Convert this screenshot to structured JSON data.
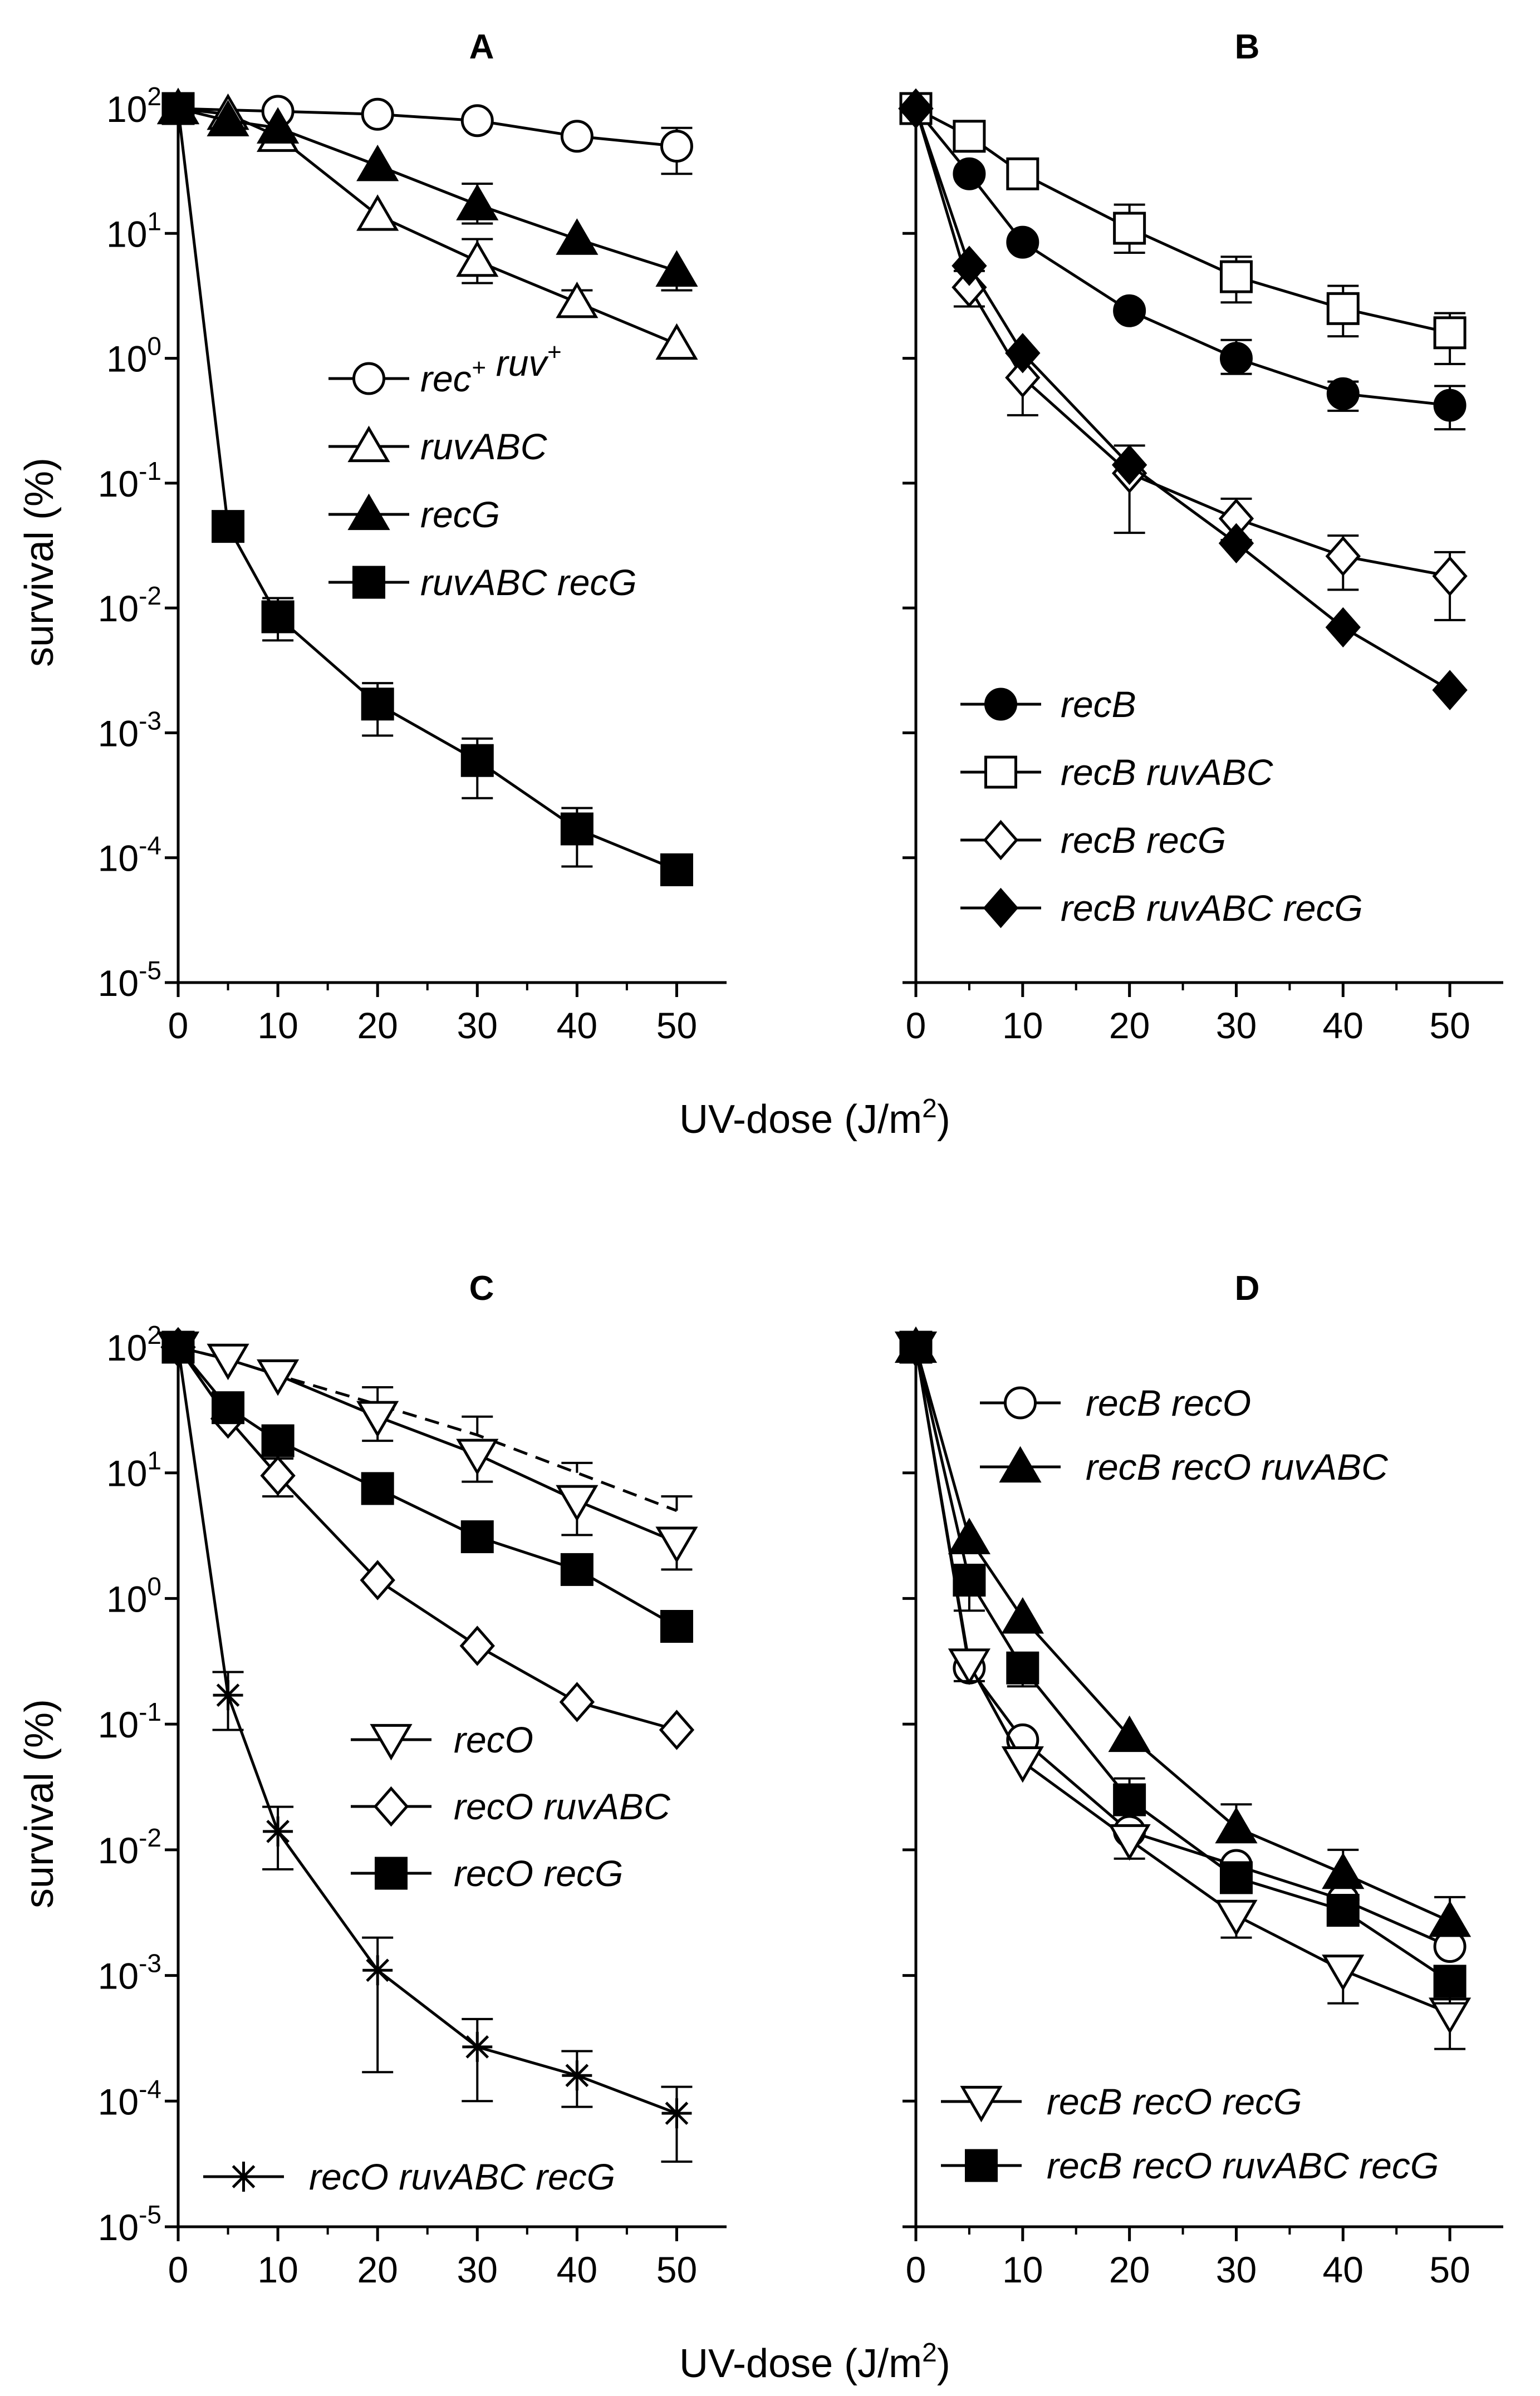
{
  "figure": {
    "shared_xlabel_top": "UV-dose (J/m",
    "shared_xlabel_bottom": "UV-dose (J/m",
    "xlabel_sup": "2",
    "ylabel_top": "survival (%)",
    "ylabel_bottom": "survival (%)"
  },
  "chart_data": [
    {
      "type": "line",
      "panel": "A",
      "title": "A",
      "xlabel": "UV-dose (J/m2)",
      "ylabel": "survival (%)",
      "yscale": "log",
      "xlim": [
        0,
        55
      ],
      "ylim": [
        1e-05,
        100
      ],
      "xticks": [
        0,
        10,
        20,
        30,
        40,
        50
      ],
      "yticks": [
        {
          "value": 100,
          "base": "10",
          "exp": "2"
        },
        {
          "value": 10,
          "base": "10",
          "exp": "1"
        },
        {
          "value": 1,
          "base": "10",
          "exp": "0"
        },
        {
          "value": 0.1,
          "base": "10",
          "exp": "-1"
        },
        {
          "value": 0.01,
          "base": "10",
          "exp": "-2"
        },
        {
          "value": 0.001,
          "base": "10",
          "exp": "-3"
        },
        {
          "value": 0.0001,
          "base": "10",
          "exp": "-4"
        },
        {
          "value": 1e-05,
          "base": "10",
          "exp": "-5"
        }
      ],
      "legend_position": "center-right",
      "series": [
        {
          "name": "rec",
          "name_parts": [
            {
              "t": "rec"
            },
            {
              "t": "+",
              "sup": true
            },
            {
              "t": " ruv"
            },
            {
              "t": "+",
              "sup": true
            }
          ],
          "marker": "circle",
          "fill": "open",
          "x": [
            0,
            10,
            20,
            30,
            40,
            50
          ],
          "y": [
            100,
            95,
            90,
            80,
            60,
            50
          ],
          "err_up": [
            null,
            null,
            null,
            null,
            null,
            70
          ],
          "err_down": [
            null,
            null,
            null,
            null,
            null,
            30
          ]
        },
        {
          "name": "ruvABC",
          "marker": "triangle-up",
          "fill": "open",
          "x": [
            0,
            5,
            10,
            20,
            30,
            40,
            50
          ],
          "y": [
            100,
            90,
            60,
            14,
            6,
            2.8,
            1.3
          ],
          "err_up": [
            null,
            null,
            null,
            null,
            9,
            3.5,
            null
          ],
          "err_down": [
            null,
            null,
            null,
            null,
            4,
            2.2,
            null
          ]
        },
        {
          "name": "recG",
          "marker": "triangle-up",
          "fill": "filled",
          "x": [
            0,
            5,
            10,
            20,
            30,
            40,
            50
          ],
          "y": [
            100,
            80,
            70,
            35,
            17,
            9,
            5
          ],
          "err_up": [
            null,
            null,
            null,
            null,
            25,
            null,
            null
          ],
          "err_down": [
            null,
            null,
            null,
            null,
            12,
            null,
            3.5
          ]
        },
        {
          "name": "ruvABC recG",
          "marker": "square",
          "fill": "filled",
          "x": [
            0,
            5,
            10,
            20,
            30,
            40,
            50
          ],
          "y": [
            100,
            0.045,
            0.0085,
            0.0017,
            0.0006,
            0.00017,
            8e-05
          ],
          "err_up": [
            null,
            null,
            0.012,
            0.0025,
            0.0009,
            0.00025,
            null
          ],
          "err_down": [
            null,
            null,
            0.0055,
            0.00095,
            0.0003,
            8.5e-05,
            null
          ]
        }
      ]
    },
    {
      "type": "line",
      "panel": "B",
      "title": "B",
      "xlabel": "UV-dose (J/m2)",
      "ylabel": "",
      "yscale": "log",
      "xlim": [
        0,
        55
      ],
      "ylim": [
        1e-05,
        100
      ],
      "xticks": [
        0,
        10,
        20,
        30,
        40,
        50
      ],
      "legend_position": "bottom-right",
      "series": [
        {
          "name": "recB",
          "marker": "circle",
          "fill": "filled",
          "x": [
            0,
            5,
            10,
            20,
            30,
            40,
            50
          ],
          "y": [
            100,
            30,
            8.5,
            2.4,
            1.0,
            0.52,
            0.42
          ],
          "err_up": [
            null,
            null,
            null,
            null,
            1.4,
            0.65,
            0.6
          ],
          "err_down": [
            null,
            null,
            null,
            null,
            0.75,
            0.38,
            0.27
          ]
        },
        {
          "name": "recB ruvABC",
          "marker": "square",
          "fill": "open",
          "x": [
            0,
            5,
            10,
            20,
            30,
            40,
            50
          ],
          "y": [
            100,
            60,
            30,
            11,
            4.5,
            2.5,
            1.6
          ],
          "err_up": [
            null,
            null,
            null,
            17,
            6.5,
            3.8,
            2.3
          ],
          "err_down": [
            null,
            null,
            null,
            7,
            2.8,
            1.5,
            0.9
          ]
        },
        {
          "name": "recB recG",
          "marker": "diamond",
          "fill": "open",
          "x": [
            0,
            5,
            10,
            20,
            30,
            40,
            50
          ],
          "y": [
            100,
            3.7,
            0.7,
            0.12,
            0.052,
            0.026,
            0.018
          ],
          "err_up": [
            null,
            5,
            1.1,
            0.2,
            0.075,
            0.038,
            0.028
          ],
          "err_down": [
            null,
            2.6,
            0.35,
            0.04,
            0.035,
            0.014,
            0.008
          ]
        },
        {
          "name": "recB ruvABC recG",
          "marker": "diamond",
          "fill": "filled",
          "x": [
            0,
            5,
            10,
            20,
            30,
            40,
            50
          ],
          "y": [
            100,
            5.5,
            1.1,
            0.14,
            0.033,
            0.007,
            0.0022
          ],
          "err_up": [
            null,
            null,
            null,
            null,
            null,
            null,
            null
          ],
          "err_down": [
            null,
            null,
            null,
            null,
            null,
            null,
            null
          ]
        }
      ]
    },
    {
      "type": "line",
      "panel": "C",
      "title": "C",
      "xlabel": "UV-dose (J/m2)",
      "ylabel": "survival (%)",
      "yscale": "log",
      "xlim": [
        0,
        55
      ],
      "ylim": [
        1e-05,
        100
      ],
      "xticks": [
        0,
        10,
        20,
        30,
        40,
        50
      ],
      "legend_position": "center-right",
      "series": [
        {
          "name": "recO (dashed)",
          "marker": "none",
          "dashed": true,
          "legend": false,
          "x": [
            0,
            5,
            10,
            20,
            30,
            40,
            50
          ],
          "y": [
            100,
            80,
            60,
            35,
            20,
            10,
            5
          ],
          "err_up": [
            null,
            null,
            null,
            48,
            28,
            12,
            6.5
          ],
          "err_down": [
            null,
            null,
            null,
            null,
            null,
            null,
            null
          ]
        },
        {
          "name": "recO",
          "marker": "triangle-down",
          "fill": "open",
          "x": [
            0,
            5,
            10,
            20,
            30,
            40,
            50
          ],
          "y": [
            100,
            80,
            60,
            28,
            14,
            6,
            2.8
          ],
          "err_up": [
            null,
            null,
            null,
            null,
            null,
            null,
            null
          ],
          "err_down": [
            null,
            null,
            null,
            18,
            8.5,
            3.2,
            1.7
          ]
        },
        {
          "name": "recO ruvABC",
          "marker": "diamond",
          "fill": "open",
          "x": [
            0,
            5,
            10,
            20,
            30,
            40,
            50
          ],
          "y": [
            100,
            27,
            9.5,
            1.4,
            0.42,
            0.15,
            0.09
          ],
          "err_up": [
            null,
            null,
            13,
            null,
            null,
            null,
            null
          ],
          "err_down": [
            null,
            null,
            6.5,
            null,
            null,
            null,
            null
          ]
        },
        {
          "name": "recO recG",
          "marker": "square",
          "fill": "filled",
          "x": [
            0,
            5,
            10,
            20,
            30,
            40,
            50
          ],
          "y": [
            100,
            33,
            18,
            7.5,
            3.1,
            1.7,
            0.6
          ],
          "err_up": [
            null,
            null,
            null,
            null,
            null,
            null,
            null
          ],
          "err_down": [
            null,
            null,
            null,
            null,
            null,
            null,
            null
          ]
        },
        {
          "name": "recO ruvABC recG",
          "marker": "asterisk",
          "fill": "open",
          "x": [
            0,
            5,
            10,
            20,
            30,
            40,
            50
          ],
          "y": [
            100,
            0.17,
            0.014,
            0.0011,
            0.00027,
            0.00016,
            8e-05
          ],
          "err_up": [
            null,
            0.26,
            0.022,
            0.002,
            0.00045,
            0.00025,
            0.00013
          ],
          "err_down": [
            null,
            0.09,
            0.007,
            0.00017,
            0.0001,
            9e-05,
            3.3e-05
          ]
        }
      ]
    },
    {
      "type": "line",
      "panel": "D",
      "title": "D",
      "xlabel": "UV-dose (J/m2)",
      "ylabel": "",
      "yscale": "log",
      "xlim": [
        0,
        55
      ],
      "ylim": [
        1e-05,
        100
      ],
      "xticks": [
        0,
        10,
        20,
        30,
        40,
        50
      ],
      "legend_position": "top-right and bottom-right",
      "series": [
        {
          "name": "recB recO",
          "marker": "circle",
          "fill": "open",
          "legend_group": "top",
          "x": [
            0,
            5,
            10,
            20,
            30,
            40,
            50
          ],
          "y": [
            100,
            0.28,
            0.075,
            0.014,
            0.0075,
            0.004,
            0.0017
          ],
          "err_up": [
            null,
            null,
            null,
            null,
            null,
            null,
            null
          ],
          "err_down": [
            null,
            null,
            null,
            null,
            null,
            null,
            null
          ]
        },
        {
          "name": "recB recO ruvABC",
          "marker": "triangle-up",
          "fill": "filled",
          "legend_group": "top",
          "x": [
            0,
            5,
            10,
            20,
            30,
            40,
            50
          ],
          "y": [
            100,
            3,
            0.7,
            0.08,
            0.015,
            0.0065,
            0.0027
          ],
          "err_up": [
            null,
            null,
            null,
            null,
            0.023,
            0.01,
            0.0042
          ],
          "err_down": [
            null,
            null,
            null,
            null,
            null,
            null,
            null
          ]
        },
        {
          "name": "recB recO recG",
          "marker": "triangle-down",
          "fill": "open",
          "legend_group": "bottom",
          "x": [
            0,
            5,
            10,
            20,
            30,
            40,
            50
          ],
          "y": [
            100,
            0.3,
            0.05,
            0.012,
            0.003,
            0.0011,
            0.0005
          ],
          "err_up": [
            null,
            null,
            null,
            null,
            null,
            null,
            null
          ],
          "err_down": [
            null,
            0.22,
            null,
            0.0085,
            0.002,
            0.0006,
            0.00026
          ]
        },
        {
          "name": "recB recO ruvABC recG",
          "marker": "square",
          "fill": "filled",
          "legend_group": "bottom",
          "x": [
            0,
            5,
            10,
            20,
            30,
            40,
            50
          ],
          "y": [
            100,
            1.4,
            0.28,
            0.025,
            0.006,
            0.0033,
            0.0009
          ],
          "err_up": [
            null,
            null,
            null,
            0.037,
            null,
            null,
            null
          ],
          "err_down": [
            null,
            0.8,
            0.2,
            null,
            null,
            null,
            0.0006
          ]
        }
      ]
    }
  ]
}
